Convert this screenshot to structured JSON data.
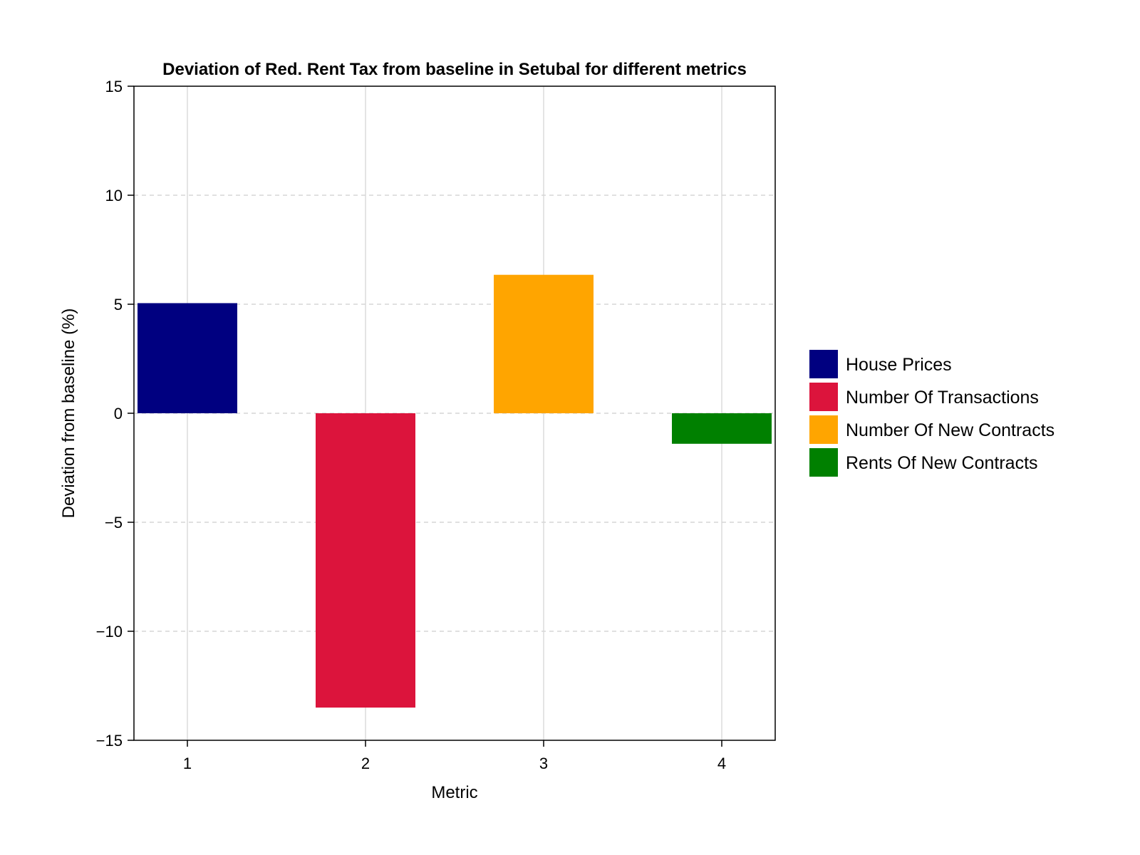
{
  "chart_data": {
    "type": "bar",
    "title": "Deviation of Red. Rent Tax from baseline in Setubal for different metrics",
    "xlabel": "Metric",
    "ylabel": "Deviation from baseline (%)",
    "categories": [
      "1",
      "2",
      "3",
      "4"
    ],
    "x": [
      1,
      2,
      3,
      4
    ],
    "values": [
      5.05,
      -13.5,
      6.35,
      -1.4
    ],
    "series_names": [
      "House Prices",
      "Number Of Transactions",
      "Number Of New Contracts",
      "Rents Of New Contracts"
    ],
    "colors": [
      "#000080",
      "#dc143c",
      "#ffa500",
      "#008000"
    ],
    "ylim": [
      -15,
      15
    ],
    "xlim": [
      0.7,
      4.3
    ],
    "yticks": [
      15,
      10,
      5,
      0,
      -5,
      -10,
      -15
    ],
    "ytick_labels": [
      "15",
      "10",
      "5",
      "0",
      "−5",
      "−10",
      "−15"
    ],
    "grid": true,
    "legend_position": "right"
  }
}
